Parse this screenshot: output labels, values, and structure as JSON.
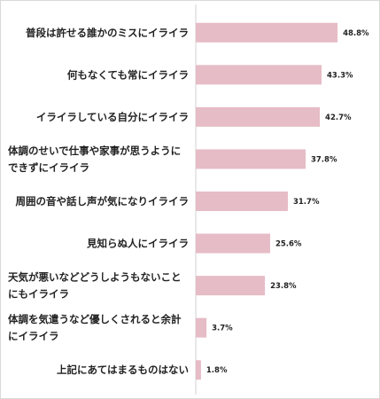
{
  "chart_data": {
    "type": "bar",
    "orientation": "horizontal",
    "categories": [
      [
        "普段は許せる誰かのミスにイライラ"
      ],
      [
        "何もなくても常にイライラ"
      ],
      [
        "イライラしている自分にイライラ"
      ],
      [
        "体調のせいで仕事や家事が思うように",
        "できずにイライラ"
      ],
      [
        "周囲の音や話し声が気になりイライラ"
      ],
      [
        "見知らぬ人にイライラ"
      ],
      [
        "天気が悪いなどどうしようもないこと",
        "にもイライラ"
      ],
      [
        "体調を気遣うなど優しくされると余計",
        "にイライラ"
      ],
      [
        "上記にあてはまるものはない"
      ]
    ],
    "values": [
      48.8,
      43.3,
      42.7,
      37.8,
      31.7,
      25.6,
      23.8,
      3.7,
      1.8
    ],
    "value_labels": [
      "48.8%",
      "43.3%",
      "42.7%",
      "37.8%",
      "31.7%",
      "25.6%",
      "23.8%",
      "3.7%",
      "1.8%"
    ],
    "xlim": [
      0,
      50
    ],
    "grid": false,
    "colors": {
      "bar": "#e6bcc6",
      "axis": "#d0d0d0",
      "text": "#222222"
    }
  }
}
